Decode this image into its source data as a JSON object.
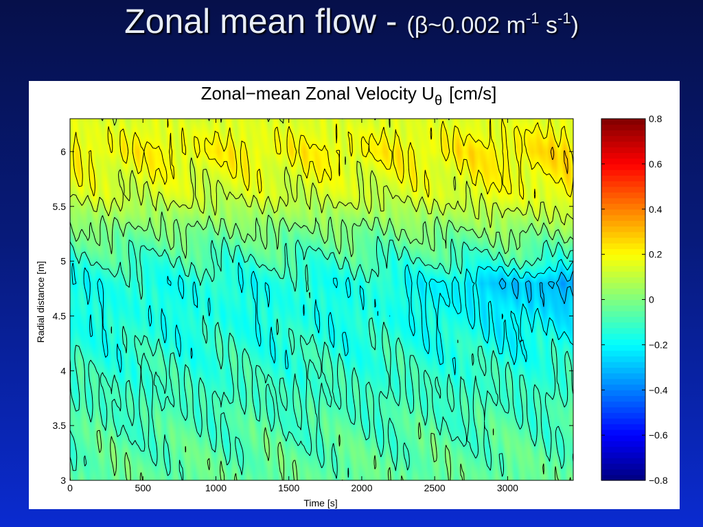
{
  "slide": {
    "title_main": "Zonal mean flow - ",
    "title_beta": "(β~0.002 m",
    "title_exp1": "-1",
    "title_s": " s",
    "title_exp2": "-1",
    "title_close": ")"
  },
  "chart_data": {
    "type": "heatmap",
    "title": "Zonal−mean Zonal Velocity U",
    "title_subscript": "θ",
    "title_units": "[cm/s]",
    "xlabel": "Time [s]",
    "ylabel": "Radial distance [m]",
    "xlim": [
      0,
      3450
    ],
    "ylim": [
      3,
      6.3
    ],
    "x_ticks": [
      0,
      500,
      1000,
      1500,
      2000,
      2500,
      3000
    ],
    "y_ticks": [
      3,
      3.5,
      4,
      4.5,
      5,
      5.5,
      6
    ],
    "colorbar": {
      "min": -0.8,
      "max": 0.8,
      "ticks": [
        -0.8,
        -0.6,
        -0.4,
        -0.2,
        0,
        0.2,
        0.4,
        0.6,
        0.8
      ],
      "tick_labels": [
        "−0.8",
        "−0.6",
        "−0.4",
        "−0.2",
        "0",
        "0.2",
        "0.4",
        "0.6",
        "0.8"
      ],
      "colormap": "jet"
    },
    "contour_levels": [
      -0.4,
      -0.3,
      -0.2,
      -0.1,
      0,
      0.1,
      0.2,
      0.3
    ],
    "field_profile": {
      "r": [
        3.0,
        3.5,
        4.0,
        4.5,
        4.8,
        5.0,
        5.3,
        5.6,
        6.0,
        6.3
      ],
      "u_early": [
        -0.04,
        -0.08,
        -0.12,
        -0.16,
        -0.16,
        -0.1,
        0.0,
        0.12,
        0.2,
        0.14
      ],
      "u_late": [
        -0.04,
        -0.08,
        -0.13,
        -0.24,
        -0.34,
        -0.12,
        0.04,
        0.18,
        0.24,
        0.16
      ]
    }
  }
}
